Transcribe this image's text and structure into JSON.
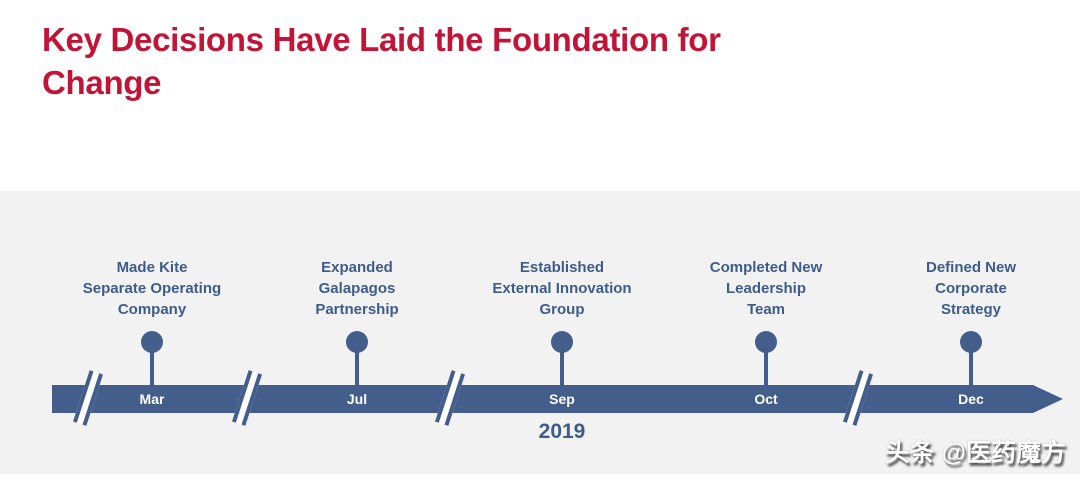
{
  "header": {
    "title": "Key Decisions Have Laid the Foundation for Change",
    "title_lines": [
      "Key Decisions Have Laid the Foundation for",
      "Change"
    ]
  },
  "colors": {
    "title_red": "#C11437",
    "timeline_blue": "#445E8C",
    "label_blue": "#3E5C8A",
    "month_text": "#FFFFFF",
    "stage_gray": "#F2F2F2"
  },
  "timeline": {
    "year": "2019",
    "milestones": [
      {
        "month": "Mar",
        "label": "Made Kite Separate Operating Company",
        "lines": [
          "Made Kite",
          "Separate Operating",
          "Company"
        ]
      },
      {
        "month": "Jul",
        "label": "Expanded Galapagos Partnership",
        "lines": [
          "Expanded",
          "Galapagos",
          "Partnership"
        ]
      },
      {
        "month": "Sep",
        "label": "Established External Innovation Group",
        "lines": [
          "Established",
          "External Innovation",
          "Group"
        ]
      },
      {
        "month": "Oct",
        "label": "Completed New Leadership Team",
        "lines": [
          "Completed New",
          "Leadership",
          "Team"
        ]
      },
      {
        "month": "Dec",
        "label": "Defined New Corporate Strategy",
        "lines": [
          "Defined New",
          "Corporate",
          "Strategy"
        ]
      }
    ],
    "break_marks_count": 4,
    "has_arrow_end": true
  },
  "watermark": {
    "text": "头条 @医药魔方"
  }
}
